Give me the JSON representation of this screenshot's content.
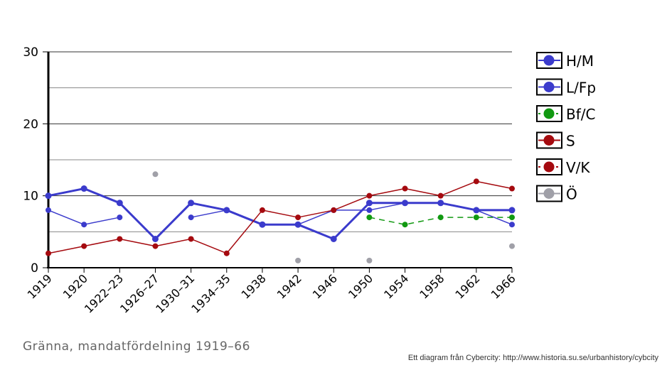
{
  "chart_data": {
    "type": "line",
    "title": "Gränna, mandatfördelning 1919–66",
    "credit": "Ett diagram från Cybercity: http://www.historia.su.se/urbanhistory/cybcity",
    "categories": [
      "1919",
      "1920",
      "1922–23",
      "1926–27",
      "1930–31",
      "1934–35",
      "1938",
      "1942",
      "1946",
      "1950",
      "1954",
      "1958",
      "1962",
      "1966"
    ],
    "ylim": [
      0,
      30
    ],
    "yticks": [
      "0",
      "10",
      "20",
      "30"
    ],
    "grid": true,
    "legend_position": "right",
    "series": [
      {
        "name": "H/M",
        "color": "#3b3bcc",
        "width": 3,
        "dashed": false,
        "values": [
          10,
          11,
          9,
          4,
          9,
          8,
          6,
          6,
          4,
          9,
          9,
          9,
          8,
          8
        ]
      },
      {
        "name": "L/Fp",
        "color": "#3b3bcc",
        "width": 1.5,
        "dashed": false,
        "values": [
          8,
          6,
          7,
          null,
          7,
          8,
          6,
          6,
          8,
          8,
          9,
          9,
          8,
          6
        ]
      },
      {
        "name": "Bf/C",
        "color": "#119911",
        "width": 1.5,
        "dashed": true,
        "values": [
          null,
          null,
          null,
          null,
          null,
          null,
          null,
          null,
          null,
          7,
          6,
          7,
          7,
          7
        ]
      },
      {
        "name": "S",
        "color": "#a50a0f",
        "width": 1.5,
        "dashed": false,
        "values": [
          2,
          3,
          4,
          3,
          4,
          2,
          8,
          7,
          8,
          10,
          11,
          10,
          12,
          11
        ]
      },
      {
        "name": "V/K",
        "color": "#a50a0f",
        "width": 1.5,
        "dashed": true,
        "values": [
          null,
          null,
          null,
          null,
          null,
          null,
          null,
          null,
          null,
          null,
          null,
          null,
          null,
          null
        ]
      },
      {
        "name": "Ö",
        "color": "#a0a0a8",
        "width": 0,
        "dashed": false,
        "values": [
          null,
          null,
          null,
          13,
          null,
          null,
          null,
          1,
          null,
          1,
          null,
          null,
          null,
          3
        ]
      }
    ]
  }
}
